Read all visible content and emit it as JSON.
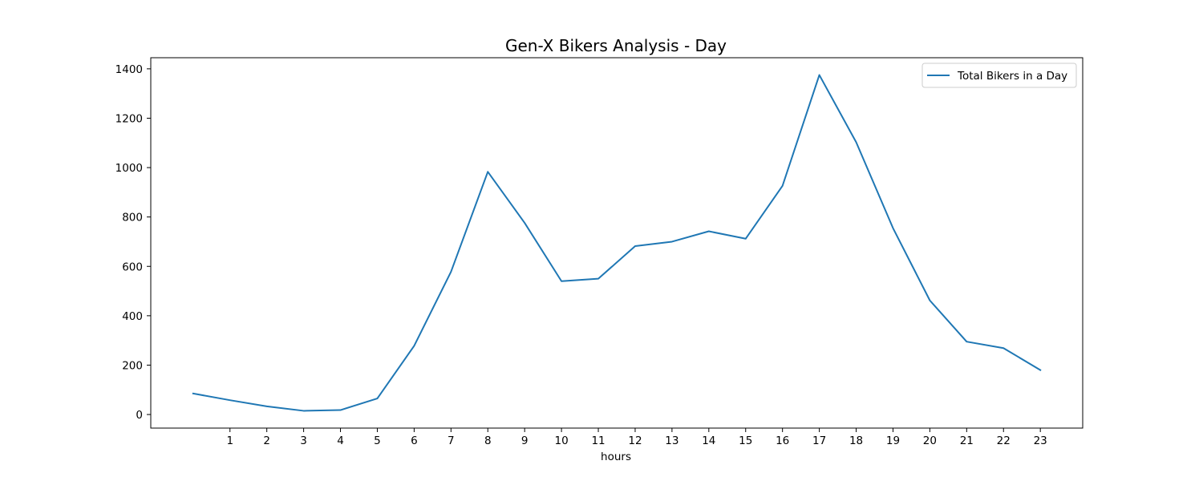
{
  "chart_data": {
    "type": "line",
    "title": "Gen-X Bikers Analysis - Day",
    "xlabel": "hours",
    "ylabel": "",
    "x": [
      0,
      1,
      2,
      3,
      4,
      5,
      6,
      7,
      8,
      9,
      10,
      11,
      12,
      13,
      14,
      15,
      16,
      17,
      18,
      19,
      20,
      21,
      22,
      23
    ],
    "x_tick_labels": [
      "1",
      "2",
      "3",
      "4",
      "5",
      "6",
      "7",
      "8",
      "9",
      "10",
      "11",
      "12",
      "13",
      "14",
      "15",
      "16",
      "17",
      "18",
      "19",
      "20",
      "21",
      "22",
      "23"
    ],
    "y_ticks": [
      0,
      200,
      400,
      600,
      800,
      1000,
      1200,
      1400
    ],
    "xlim": [
      -1.15,
      24.15
    ],
    "ylim": [
      -55,
      1445
    ],
    "grid": false,
    "legend_position": "top-right",
    "series": [
      {
        "name": "Total Bikers in a Day",
        "color": "#1f77b4",
        "values": [
          85,
          58,
          33,
          15,
          18,
          65,
          278,
          578,
          983,
          776,
          540,
          550,
          682,
          700,
          742,
          712,
          926,
          1375,
          1103,
          755,
          462,
          295,
          269,
          180
        ]
      }
    ]
  }
}
